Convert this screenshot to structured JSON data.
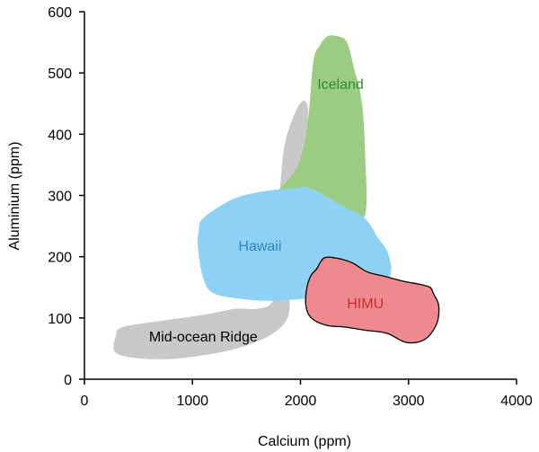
{
  "chart_data": {
    "type": "scatter",
    "xlabel": "Calcium (ppm)",
    "ylabel": "Aluminium (ppm)",
    "xlim": [
      0,
      4000
    ],
    "ylim": [
      0,
      600
    ],
    "xticks": [
      0,
      1000,
      2000,
      3000,
      4000
    ],
    "yticks": [
      0,
      100,
      200,
      300,
      400,
      500,
      600
    ],
    "xtick_labels": [
      "0",
      "1000",
      "2000",
      "3000",
      "4000"
    ],
    "ytick_labels": [
      "0",
      "100",
      "200",
      "300",
      "400",
      "500",
      "600"
    ],
    "grid": false,
    "legend": "none",
    "regions": [
      {
        "name": "Mid-ocean Ridge",
        "fill": "#c8c8c8",
        "label_color": "#000000",
        "label_at": [
          1100,
          68
        ],
        "outline": [
          [
            350,
            85
          ],
          [
            700,
            95
          ],
          [
            1100,
            105
          ],
          [
            1400,
            115
          ],
          [
            1600,
            115
          ],
          [
            1750,
            130
          ],
          [
            1800,
            200
          ],
          [
            1750,
            220
          ],
          [
            1800,
            290
          ],
          [
            1850,
            380
          ],
          [
            1950,
            435
          ],
          [
            2030,
            455
          ],
          [
            2070,
            440
          ],
          [
            2060,
            400
          ],
          [
            2050,
            360
          ],
          [
            2000,
            300
          ],
          [
            1950,
            250
          ],
          [
            1950,
            200
          ],
          [
            1900,
            160
          ],
          [
            1900,
            130
          ],
          [
            1880,
            100
          ],
          [
            1750,
            75
          ],
          [
            1500,
            55
          ],
          [
            1200,
            42
          ],
          [
            800,
            33
          ],
          [
            450,
            35
          ],
          [
            280,
            45
          ],
          [
            290,
            70
          ]
        ]
      },
      {
        "name": "Iceland",
        "fill": "#9ccc84",
        "label_color": "#2e8b2e",
        "label_at": [
          2370,
          480
        ],
        "outline": [
          [
            1780,
            300
          ],
          [
            1950,
            340
          ],
          [
            2030,
            380
          ],
          [
            2080,
            440
          ],
          [
            2120,
            520
          ],
          [
            2180,
            545
          ],
          [
            2250,
            560
          ],
          [
            2340,
            560
          ],
          [
            2430,
            550
          ],
          [
            2500,
            505
          ],
          [
            2570,
            450
          ],
          [
            2600,
            360
          ],
          [
            2600,
            270
          ],
          [
            2450,
            245
          ],
          [
            2300,
            240
          ],
          [
            2150,
            260
          ],
          [
            2000,
            280
          ]
        ]
      },
      {
        "name": "Hawaii",
        "fill": "#8fd1f2",
        "label_color": "#2a86c8",
        "label_at": [
          1625,
          216
        ],
        "outline": [
          [
            1100,
            263
          ],
          [
            1350,
            292
          ],
          [
            1600,
            305
          ],
          [
            1950,
            312
          ],
          [
            2100,
            311
          ],
          [
            2400,
            282
          ],
          [
            2600,
            262
          ],
          [
            2720,
            230
          ],
          [
            2800,
            210
          ],
          [
            2840,
            180
          ],
          [
            2780,
            160
          ],
          [
            2500,
            150
          ],
          [
            2300,
            140
          ],
          [
            2100,
            133
          ],
          [
            1800,
            128
          ],
          [
            1500,
            130
          ],
          [
            1200,
            140
          ],
          [
            1100,
            165
          ],
          [
            1050,
            215
          ],
          [
            1060,
            245
          ]
        ]
      },
      {
        "name": "HIMU",
        "fill": "#ee8a8f",
        "label_color": "#cc2a2a",
        "label_at": [
          2600,
          122
        ],
        "outline": [
          [
            2150,
            180
          ],
          [
            2220,
            198
          ],
          [
            2350,
            197
          ],
          [
            2480,
            190
          ],
          [
            2620,
            175
          ],
          [
            2780,
            168
          ],
          [
            2950,
            160
          ],
          [
            3100,
            155
          ],
          [
            3200,
            150
          ],
          [
            3230,
            140
          ],
          [
            3280,
            120
          ],
          [
            3260,
            90
          ],
          [
            3150,
            65
          ],
          [
            2980,
            60
          ],
          [
            2800,
            75
          ],
          [
            2600,
            80
          ],
          [
            2420,
            85
          ],
          [
            2240,
            88
          ],
          [
            2100,
            100
          ],
          [
            2050,
            120
          ],
          [
            2060,
            150
          ],
          [
            2100,
            170
          ]
        ]
      }
    ]
  }
}
